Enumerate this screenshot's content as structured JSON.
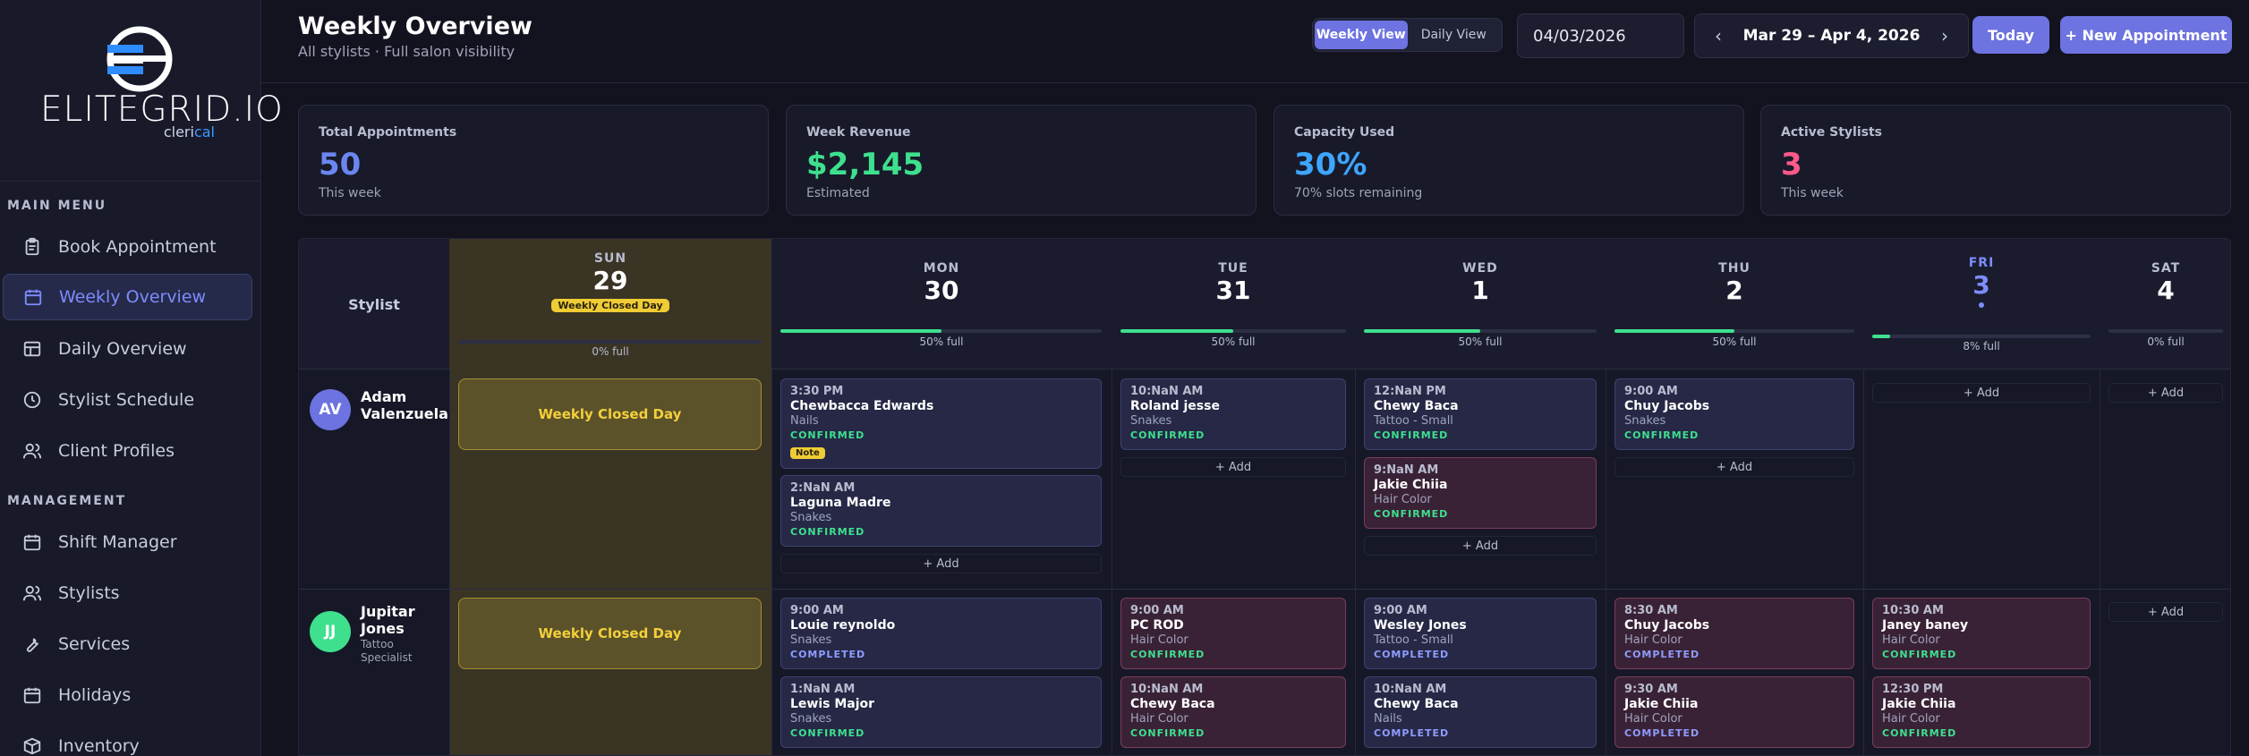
{
  "brand": {
    "name": "ELITEGRID.IO",
    "sub_a": "cleri",
    "sub_b": "cal"
  },
  "sidebar": {
    "main_label": "MAIN MENU",
    "main_items": [
      {
        "label": "Book Appointment",
        "icon": "clipboard-icon"
      },
      {
        "label": "Weekly Overview",
        "icon": "calendar-icon",
        "active": true
      },
      {
        "label": "Daily Overview",
        "icon": "table-icon"
      },
      {
        "label": "Stylist Schedule",
        "icon": "clock-icon"
      },
      {
        "label": "Client Profiles",
        "icon": "users-icon"
      }
    ],
    "mgmt_label": "MANAGEMENT",
    "mgmt_items": [
      {
        "label": "Shift Manager",
        "icon": "calendar-icon"
      },
      {
        "label": "Stylists",
        "icon": "users-icon"
      },
      {
        "label": "Services",
        "icon": "wrench-icon"
      },
      {
        "label": "Holidays",
        "icon": "calendar-icon"
      },
      {
        "label": "Inventory",
        "icon": "box-icon"
      }
    ]
  },
  "header": {
    "title": "Weekly Overview",
    "subtitle": "All stylists · Full salon visibility",
    "view_weekly": "Weekly View",
    "view_daily": "Daily View",
    "date_value": "04/03/2026",
    "range": "Mar 29 – Apr 4, 2026",
    "prev": "‹",
    "next": "›",
    "today": "Today",
    "new_appt": "+ New Appointment"
  },
  "stats": [
    {
      "label": "Total Appointments",
      "value": "50",
      "sub": "This week",
      "color": "#6b86f0"
    },
    {
      "label": "Week Revenue",
      "value": "$2,145",
      "sub": "Estimated",
      "color": "#3ee08e"
    },
    {
      "label": "Capacity Used",
      "value": "30%",
      "sub": "70% slots remaining",
      "color": "#3ea6ff"
    },
    {
      "label": "Active Stylists",
      "value": "3",
      "sub": "This week",
      "color": "#ff5a8a"
    }
  ],
  "calendar": {
    "stylist_col": "Stylist",
    "closed_badge": "Weekly Closed Day",
    "days": [
      {
        "name": "SUN",
        "num": "29",
        "cap": "0% full",
        "fill": 0,
        "closed": true
      },
      {
        "name": "MON",
        "num": "30",
        "cap": "50% full",
        "fill": 50
      },
      {
        "name": "TUE",
        "num": "31",
        "cap": "50% full",
        "fill": 50
      },
      {
        "name": "WED",
        "num": "1",
        "cap": "50% full",
        "fill": 50
      },
      {
        "name": "THU",
        "num": "2",
        "cap": "50% full",
        "fill": 50
      },
      {
        "name": "FRI",
        "num": "3",
        "cap": "8% full",
        "fill": 8,
        "today": true
      },
      {
        "name": "SAT",
        "num": "4",
        "cap": "0% full",
        "fill": 0
      }
    ],
    "add_label": "+ Add",
    "note_label": "Note",
    "stylists": [
      {
        "initials": "AV",
        "name": "Adam Valenzuela",
        "role": "",
        "color": "#6d73e0"
      },
      {
        "initials": "JJ",
        "name": "Jupitar Jones",
        "role": "Tattoo Specialist",
        "color": "#3ee08e"
      }
    ],
    "appointments": [
      {
        "time": "3:30 PM",
        "client": "Chewbacca Edwards",
        "service": "Nails",
        "status": "CONFIRMED"
      },
      {
        "time": "2:NaN AM",
        "client": "Laguna Madre",
        "service": "Snakes",
        "status": "CONFIRMED"
      },
      {
        "time": "10:NaN AM",
        "client": "Roland jesse",
        "service": "Snakes",
        "status": "CONFIRMED"
      },
      {
        "time": "12:NaN PM",
        "client": "Chewy Baca",
        "service": "Tattoo - Small",
        "status": "CONFIRMED"
      },
      {
        "time": "9:NaN AM",
        "client": "Jakie Chiia",
        "service": "Hair Color",
        "status": "CONFIRMED"
      },
      {
        "time": "9:00 AM",
        "client": "Chuy Jacobs",
        "service": "Snakes",
        "status": "CONFIRMED"
      },
      {
        "time": "9:00 AM",
        "client": "Louie reynoldo",
        "service": "Snakes",
        "status": "COMPLETED"
      },
      {
        "time": "1:NaN AM",
        "client": "Lewis Major",
        "service": "Snakes",
        "status": "CONFIRMED"
      },
      {
        "time": "9:00 AM",
        "client": "PC ROD",
        "service": "Hair Color",
        "status": "CONFIRMED"
      },
      {
        "time": "10:NaN AM",
        "client": "Chewy Baca",
        "service": "Hair Color",
        "status": "CONFIRMED"
      },
      {
        "time": "9:00 AM",
        "client": "Wesley Jones",
        "service": "Tattoo - Small",
        "status": "COMPLETED"
      },
      {
        "time": "10:NaN AM",
        "client": "Chewy Baca",
        "service": "Nails",
        "status": "COMPLETED"
      },
      {
        "time": "8:30 AM",
        "client": "Chuy Jacobs",
        "service": "Hair Color",
        "status": "COMPLETED"
      },
      {
        "time": "9:30 AM",
        "client": "Jakie Chiia",
        "service": "Hair Color",
        "status": "COMPLETED"
      },
      {
        "time": "10:30 AM",
        "client": "Janey baney",
        "service": "Hair Color",
        "status": "CONFIRMED"
      },
      {
        "time": "12:30 PM",
        "client": "Jakie Chiia",
        "service": "Hair Color",
        "status": "CONFIRMED"
      }
    ]
  }
}
